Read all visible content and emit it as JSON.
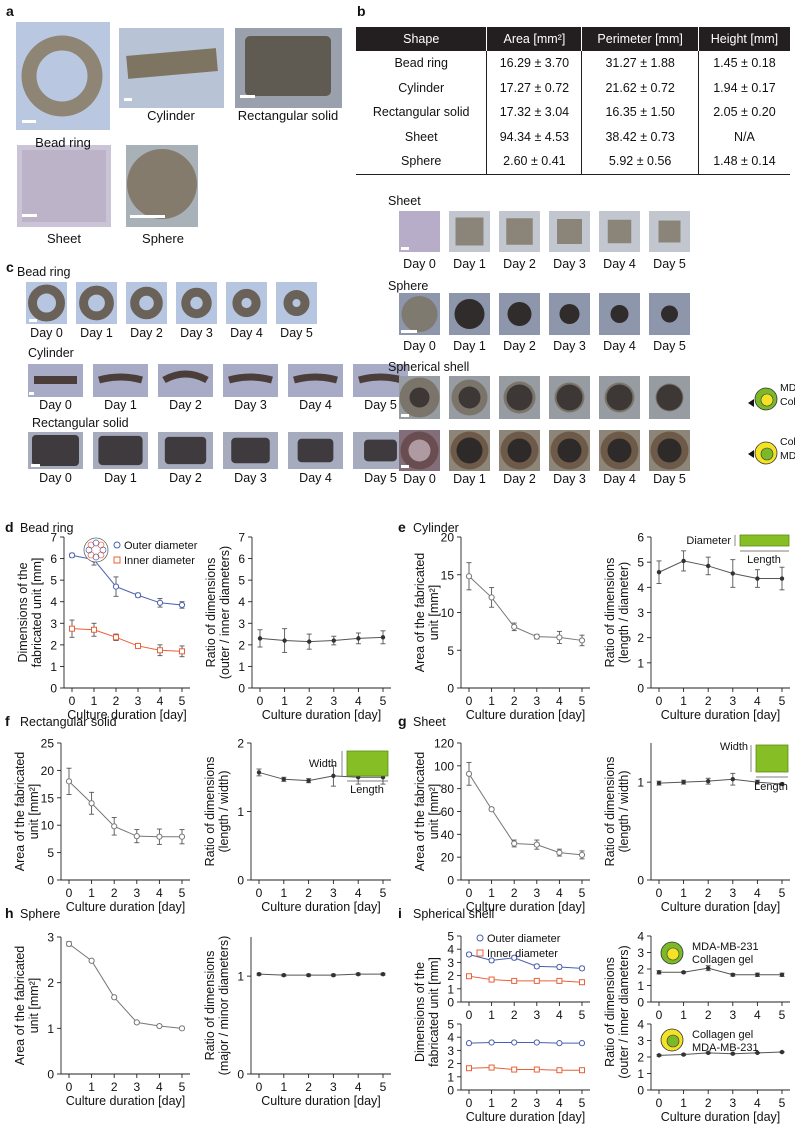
{
  "panels": {
    "a": {
      "label": "a",
      "images": [
        {
          "caption": "Bead ring"
        },
        {
          "caption": "Cylinder"
        },
        {
          "caption": "Rectangular solid"
        },
        {
          "caption": "Sheet"
        },
        {
          "caption": "Sphere"
        }
      ]
    },
    "b": {
      "label": "b"
    },
    "c": {
      "label": "c",
      "rows": [
        {
          "title": "Bead ring"
        },
        {
          "title": "Cylinder"
        },
        {
          "title": "Rectangular solid"
        },
        {
          "title": "Sheet"
        },
        {
          "title": "Sphere"
        },
        {
          "title": "Spherical shell"
        }
      ]
    },
    "d": {
      "label": "d",
      "title": "Bead ring"
    },
    "e": {
      "label": "e",
      "title": "Cylinder"
    },
    "f": {
      "label": "f",
      "title": "Rectangular solid"
    },
    "g": {
      "label": "g",
      "title": "Sheet"
    },
    "h": {
      "label": "h",
      "title": "Sphere"
    },
    "i": {
      "label": "i",
      "title": "Spherical shell"
    }
  },
  "day_labels": [
    "Day 0",
    "Day 1",
    "Day 2",
    "Day 3",
    "Day 4",
    "Day 5"
  ],
  "shell_legend": {
    "top": {
      "line1": "MDA-MB-231",
      "line2": "Collagen gel"
    },
    "bottom": {
      "line1": "Collagen gel",
      "line2": "MDA-MB-231"
    }
  },
  "table": {
    "headers": [
      "Shape",
      "Area [mm²]",
      "Perimeter [mm]",
      "Height [mm]"
    ],
    "rows": [
      [
        "Bead ring",
        "16.29 ± 3.70",
        "31.27 ± 1.88",
        "1.45 ± 0.18"
      ],
      [
        "Cylinder",
        "17.27 ± 0.72",
        "21.62 ± 0.72",
        "1.94 ± 0.17"
      ],
      [
        "Rectangular solid",
        "17.32 ± 3.04",
        "16.35 ± 1.50",
        "2.05 ± 0.20"
      ],
      [
        "Sheet",
        "94.34 ± 4.53",
        "38.42 ± 0.73",
        "N/A"
      ],
      [
        "Sphere",
        "2.60 ± 0.41",
        "5.92 ± 0.56",
        "1.48 ± 0.14"
      ]
    ]
  },
  "chart_data": [
    {
      "id": "d1",
      "type": "line",
      "x": [
        0,
        1,
        2,
        3,
        4,
        5
      ],
      "ylim": [
        0,
        7
      ],
      "yticks": [
        0,
        1,
        2,
        3,
        4,
        5,
        6,
        7
      ],
      "ylabel": "Dimensions of the\nfabricated unit [mm]",
      "xlabel": "Culture duration [day]",
      "legend": [
        "Outer diameter",
        "Inner diameter"
      ],
      "series": [
        {
          "name": "Outer diameter",
          "color": "#4a5fb0",
          "marker": "circle",
          "values": [
            6.15,
            5.95,
            4.7,
            4.3,
            3.95,
            3.85
          ],
          "err": [
            0.1,
            0.25,
            0.45,
            0.1,
            0.2,
            0.15
          ]
        },
        {
          "name": "Inner diameter",
          "color": "#e8603a",
          "marker": "square",
          "values": [
            2.75,
            2.7,
            2.35,
            1.95,
            1.75,
            1.7
          ],
          "err": [
            0.4,
            0.3,
            0.15,
            0.1,
            0.25,
            0.25
          ]
        }
      ]
    },
    {
      "id": "d2",
      "type": "line",
      "x": [
        0,
        1,
        2,
        3,
        4,
        5
      ],
      "ylim": [
        0,
        7
      ],
      "yticks": [
        0,
        1,
        2,
        3,
        4,
        5,
        6,
        7
      ],
      "ylabel": "Ratio of dimensions\n(outer / inner diameters)",
      "xlabel": "Culture duration [day]",
      "series": [
        {
          "color": "#555",
          "marker": "filled",
          "values": [
            2.3,
            2.2,
            2.15,
            2.2,
            2.3,
            2.35
          ],
          "err": [
            0.4,
            0.55,
            0.35,
            0.2,
            0.25,
            0.3
          ]
        }
      ]
    },
    {
      "id": "e1",
      "type": "line",
      "x": [
        0,
        1,
        2,
        3,
        4,
        5
      ],
      "ylim": [
        0,
        20
      ],
      "yticks": [
        0,
        5,
        10,
        15,
        20
      ],
      "ylabel": "Area of the fabricated\nunit [mm²]",
      "xlabel": "Culture duration [day]",
      "series": [
        {
          "color": "#777",
          "marker": "circle",
          "values": [
            14.8,
            12.0,
            8.1,
            6.8,
            6.7,
            6.3
          ],
          "err": [
            1.8,
            1.3,
            0.5,
            0.3,
            0.8,
            0.7
          ]
        }
      ]
    },
    {
      "id": "e2",
      "type": "line",
      "x": [
        0,
        1,
        2,
        3,
        4,
        5
      ],
      "ylim": [
        0,
        6
      ],
      "yticks": [
        0,
        1,
        2,
        3,
        4,
        5,
        6
      ],
      "ylabel": "Ratio of dimensions\n(length / diameter)",
      "xlabel": "Culture duration [day]",
      "annot": {
        "a": "Diameter",
        "b": "Length"
      },
      "series": [
        {
          "color": "#555",
          "marker": "filled",
          "values": [
            4.6,
            5.05,
            4.85,
            4.55,
            4.35,
            4.35
          ],
          "err": [
            0.45,
            0.4,
            0.35,
            0.55,
            0.35,
            0.45
          ]
        }
      ]
    },
    {
      "id": "f1",
      "type": "line",
      "x": [
        0,
        1,
        2,
        3,
        4,
        5
      ],
      "ylim": [
        0,
        25
      ],
      "yticks": [
        0,
        5,
        10,
        15,
        20,
        25
      ],
      "ylabel": "Area of the fabricated\nunit [mm²]",
      "xlabel": "Culture duration [day]",
      "series": [
        {
          "color": "#777",
          "marker": "circle",
          "values": [
            18.0,
            14.0,
            9.8,
            8.0,
            7.9,
            7.9
          ],
          "err": [
            2.4,
            2.0,
            1.6,
            1.2,
            1.4,
            1.3
          ]
        }
      ]
    },
    {
      "id": "f2",
      "type": "line",
      "x": [
        0,
        1,
        2,
        3,
        4,
        5
      ],
      "ylim": [
        0,
        2
      ],
      "yticks": [
        0,
        1,
        2
      ],
      "ylabel": "Ratio of dimensions\n(length / width)",
      "xlabel": "Culture duration [day]",
      "annot": {
        "a": "Width",
        "b": "Length"
      },
      "series": [
        {
          "color": "#555",
          "marker": "filled",
          "values": [
            1.57,
            1.47,
            1.45,
            1.52,
            1.5,
            1.5
          ],
          "err": [
            0.05,
            0.03,
            0.03,
            0.15,
            0.1,
            0.1
          ]
        }
      ]
    },
    {
      "id": "g1",
      "type": "line",
      "x": [
        0,
        1,
        2,
        3,
        4,
        5
      ],
      "ylim": [
        0,
        120
      ],
      "yticks": [
        0,
        20,
        40,
        60,
        80,
        100,
        120
      ],
      "ylabel": "Area of the fabricated\nunit [mm²]",
      "xlabel": "Culture duration [day]",
      "series": [
        {
          "color": "#777",
          "marker": "circle",
          "values": [
            93,
            62,
            32,
            31,
            24,
            22
          ],
          "err": [
            10,
            1.5,
            3,
            4,
            3,
            3.5
          ]
        }
      ]
    },
    {
      "id": "g2",
      "type": "line",
      "x": [
        0,
        1,
        2,
        3,
        4,
        5
      ],
      "ylim": [
        0,
        1.4
      ],
      "yticks": [
        0,
        1
      ],
      "ylabel": "Ratio of dimensions\n(length / width)",
      "xlabel": "Culture duration [day]",
      "annot": {
        "a": "Width",
        "b": "Length"
      },
      "series": [
        {
          "color": "#555",
          "marker": "filled",
          "values": [
            0.99,
            1.0,
            1.01,
            1.03,
            1.0,
            0.98
          ],
          "err": [
            0.02,
            0.02,
            0.03,
            0.06,
            0.02,
            0.01
          ]
        }
      ]
    },
    {
      "id": "h1",
      "type": "line",
      "x": [
        0,
        1,
        2,
        3,
        4,
        5
      ],
      "ylim": [
        0,
        3
      ],
      "yticks": [
        0,
        1,
        2,
        3
      ],
      "ylabel": "Area of the fabricated\nunit [mm²]",
      "xlabel": "Culture duration [day]",
      "series": [
        {
          "color": "#777",
          "marker": "circle",
          "values": [
            2.85,
            2.48,
            1.68,
            1.13,
            1.05,
            1.0
          ],
          "err": [
            0.05,
            0.03,
            0.03,
            0.03,
            0.03,
            0.03
          ]
        }
      ]
    },
    {
      "id": "h2",
      "type": "line",
      "x": [
        0,
        1,
        2,
        3,
        4,
        5
      ],
      "ylim": [
        0,
        1.4
      ],
      "yticks": [
        0,
        1
      ],
      "ylabel": "Ratio of dimensions\n(major / minor diameters)",
      "xlabel": "Culture duration [day]",
      "series": [
        {
          "color": "#555",
          "marker": "filled",
          "values": [
            1.02,
            1.01,
            1.01,
            1.01,
            1.02,
            1.02
          ],
          "err": [
            0.01,
            0.01,
            0.01,
            0.01,
            0.01,
            0.01
          ]
        }
      ]
    },
    {
      "id": "i1",
      "type": "line",
      "x": [
        0,
        1,
        2,
        3,
        4,
        5
      ],
      "ylim": [
        0,
        5
      ],
      "yticks": [
        0,
        1,
        2,
        3,
        4,
        5
      ],
      "ylabel": "",
      "xlabel": "",
      "legend": [
        "Outer diameter",
        "Inner diameter"
      ],
      "series": [
        {
          "name": "Outer diameter",
          "color": "#4a5fb0",
          "marker": "circle",
          "values": [
            3.6,
            3.15,
            3.35,
            2.7,
            2.65,
            2.55
          ],
          "err": [
            0.15,
            0.15,
            0.15,
            0.15,
            0.15,
            0.15
          ]
        },
        {
          "name": "Inner diameter",
          "color": "#e8603a",
          "marker": "square",
          "values": [
            1.95,
            1.7,
            1.6,
            1.6,
            1.6,
            1.5
          ],
          "err": [
            0.08,
            0.05,
            0.05,
            0.05,
            0.05,
            0.05
          ]
        }
      ]
    },
    {
      "id": "i2",
      "type": "line",
      "x": [
        0,
        1,
        2,
        3,
        4,
        5
      ],
      "ylim": [
        0,
        4
      ],
      "yticks": [
        0,
        1,
        2,
        3,
        4
      ],
      "ylabel": "",
      "xlabel": "",
      "series": [
        {
          "color": "#555",
          "marker": "filled",
          "values": [
            1.8,
            1.8,
            2.05,
            1.65,
            1.65,
            1.65
          ],
          "err": [
            0.1,
            0.05,
            0.15,
            0.08,
            0.1,
            0.1
          ]
        }
      ]
    },
    {
      "id": "i3",
      "type": "line",
      "x": [
        0,
        1,
        2,
        3,
        4,
        5
      ],
      "ylim": [
        0,
        5
      ],
      "yticks": [
        0,
        1,
        2,
        3,
        4,
        5
      ],
      "ylabel": "",
      "xlabel": "Culture duration [day]",
      "series": [
        {
          "color": "#4a5fb0",
          "marker": "circle",
          "values": [
            3.55,
            3.6,
            3.6,
            3.6,
            3.55,
            3.55
          ],
          "err": [
            0.05,
            0.05,
            0.05,
            0.05,
            0.05,
            0.05
          ]
        },
        {
          "color": "#e8603a",
          "marker": "square",
          "values": [
            1.65,
            1.7,
            1.55,
            1.55,
            1.5,
            1.5
          ],
          "err": [
            0.1,
            0.15,
            0.05,
            0.05,
            0.05,
            0.05
          ]
        }
      ]
    },
    {
      "id": "i4",
      "type": "line",
      "x": [
        0,
        1,
        2,
        3,
        4,
        5
      ],
      "ylim": [
        0,
        4
      ],
      "yticks": [
        0,
        1,
        2,
        3,
        4
      ],
      "ylabel": "",
      "xlabel": "Culture duration [day]",
      "series": [
        {
          "color": "#555",
          "marker": "filled",
          "values": [
            2.1,
            2.15,
            2.25,
            2.2,
            2.25,
            2.3
          ],
          "err": [
            0.05,
            0.05,
            0.05,
            0.03,
            0.03,
            0.03
          ]
        }
      ]
    }
  ],
  "i_ylabels": {
    "left": "Dimensions of the\nfabricated unit [mm]",
    "right": "Ratio of dimensions\n(outer / inner diameters)"
  }
}
